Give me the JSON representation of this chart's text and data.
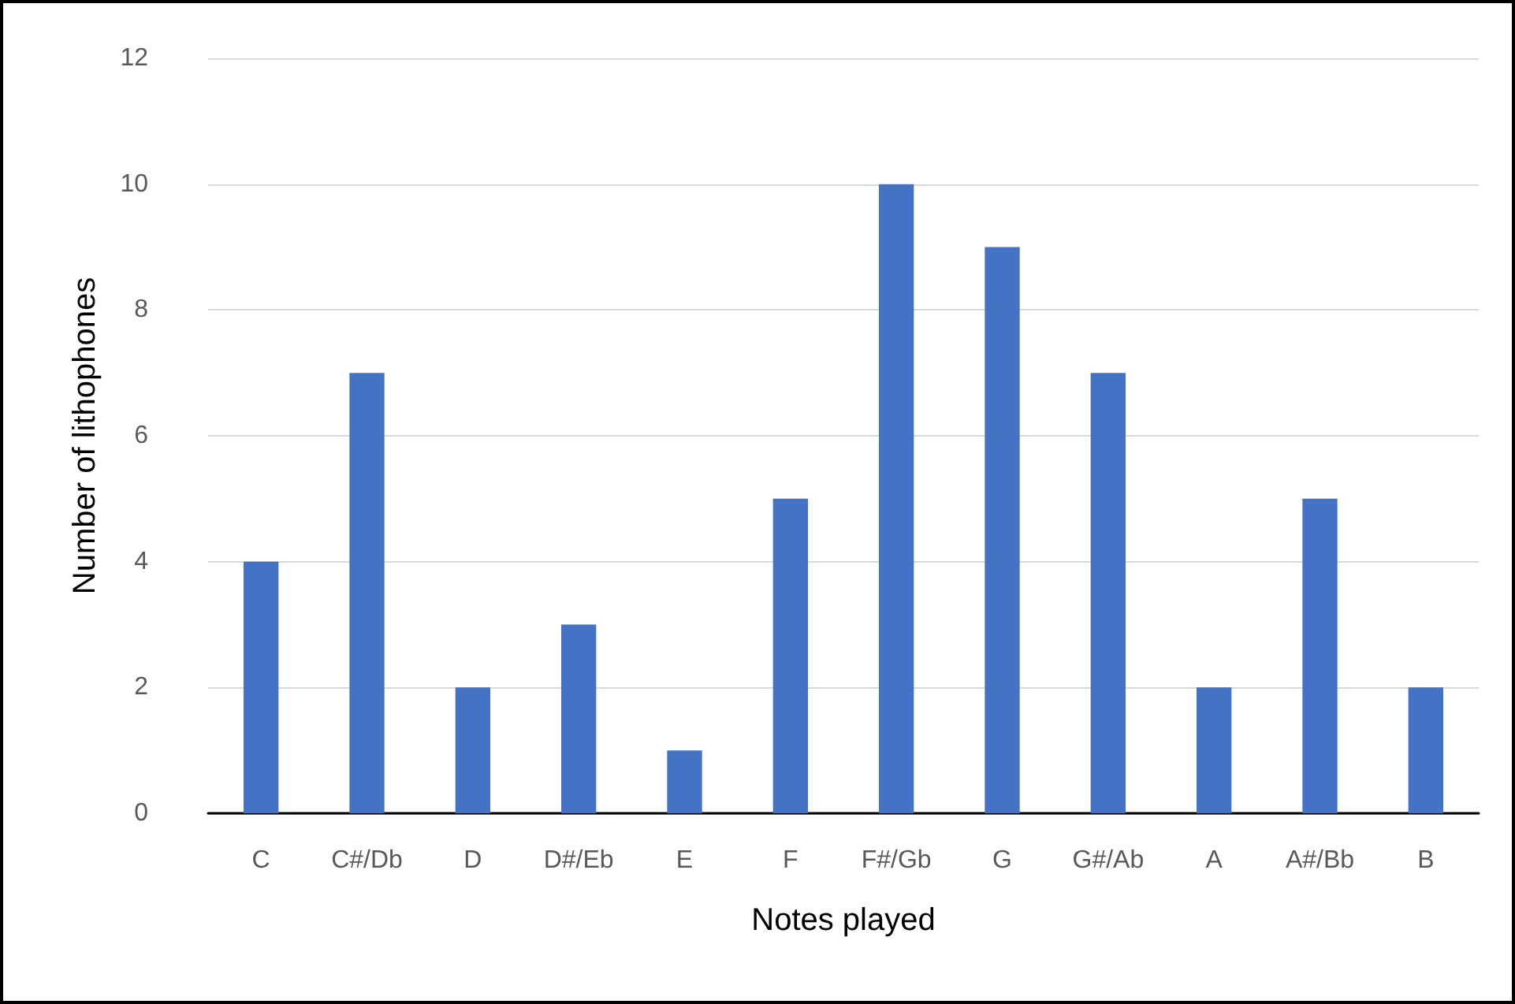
{
  "chart_data": {
    "type": "bar",
    "xlabel": "Notes played",
    "ylabel": "Number of lithophones",
    "categories": [
      "C",
      "C#/Db",
      "D",
      "D#/Eb",
      "E",
      "F",
      "F#/Gb",
      "G",
      "G#/Ab",
      "A",
      "A#/Bb",
      "B"
    ],
    "values": [
      4,
      7,
      2,
      3,
      1,
      5,
      10,
      9,
      7,
      2,
      5,
      2
    ],
    "color": "#4472c4",
    "ylim": [
      0,
      12
    ],
    "yticks": [
      0,
      2,
      4,
      6,
      8,
      10,
      12
    ],
    "grid": "y"
  }
}
